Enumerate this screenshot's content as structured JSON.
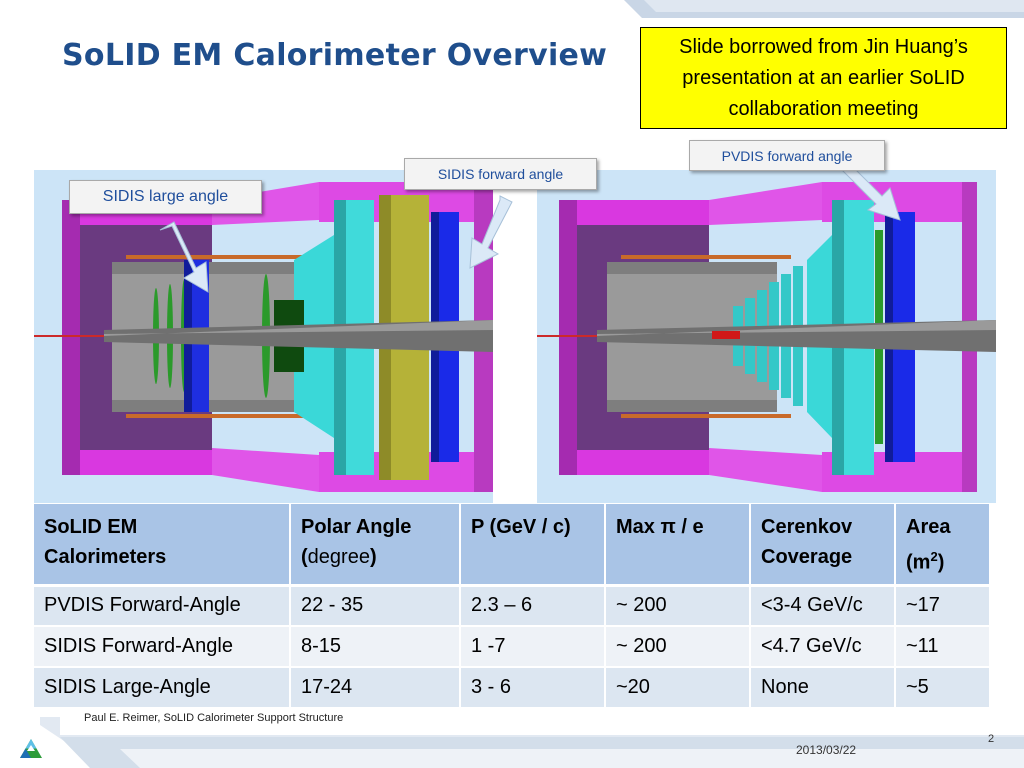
{
  "title": "SoLID EM Calorimeter Overview",
  "note": {
    "line1": "Slide borrowed from Jin Huang’s",
    "line2": "presentation at an earlier SoLID",
    "line3": "collaboration meeting"
  },
  "callouts": {
    "sidis_large": "SIDIS large angle",
    "sidis_forward": "SIDIS forward angle",
    "pvdis_forward": "PVDIS forward angle"
  },
  "colors": {
    "title": "#1f4e8c",
    "note_bg": "#ffff00",
    "panel_bg": "#cce4f7",
    "magenta": "#e040e8",
    "cyan": "#3cd6d6",
    "blue": "#1428d8",
    "olive": "#b8b43a",
    "green": "#1f8a1f",
    "gray": "#8c8c8c"
  },
  "table": {
    "headers": {
      "col1a": "SoLID EM",
      "col1b": "Calorimeters",
      "col2a": "Polar Angle",
      "col2b_open": "(",
      "col2b_word": "degree",
      "col2b_close": ")",
      "col3": "P (GeV / c)",
      "col4": "Max π / e",
      "col5a": "Cerenkov",
      "col5b": "Coverage",
      "col6a": "Area",
      "col6b_base": "(m",
      "col6b_sup": "2",
      "col6b_close": ")"
    },
    "rows": [
      [
        "PVDIS Forward-Angle",
        "22 - 35",
        "2.3 – 6",
        "~ 200",
        "<3-4 GeV/c",
        "~17"
      ],
      [
        "SIDIS Forward-Angle",
        "8-15",
        "1 -7",
        "~ 200",
        "<4.7 GeV/c",
        "~11"
      ],
      [
        "SIDIS Large-Angle",
        "17-24",
        "3 - 6",
        "~20",
        "None",
        "~5"
      ]
    ]
  },
  "footer": {
    "author": "Paul E. Reimer, SoLID Calorimeter Support Structure",
    "date": "2013/03/22",
    "page": "2"
  }
}
